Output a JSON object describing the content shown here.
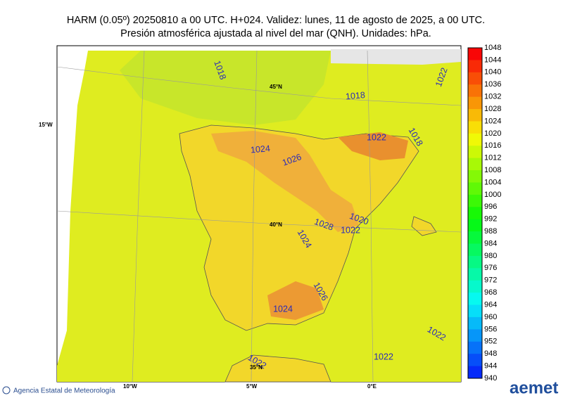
{
  "header": {
    "line1": "HARM (0.05º) 20250810 a 00 UTC. H+024. Validez: lunes, 11 de agosto de 2025, a 00 UTC.",
    "line2": "Presión atmosférica ajustada al nivel del mar (QNH). Unidades: hPa."
  },
  "colorbar": {
    "ticks": [
      1048,
      1044,
      1040,
      1036,
      1032,
      1028,
      1024,
      1020,
      1016,
      1012,
      1008,
      1004,
      1000,
      996,
      992,
      988,
      984,
      980,
      976,
      972,
      968,
      964,
      960,
      956,
      952,
      948,
      944,
      940
    ]
  },
  "map": {
    "contour_labels": [
      "1018",
      "1018",
      "1022",
      "1024",
      "1026",
      "1028",
      "1022",
      "1020",
      "1024",
      "1026",
      "1024",
      "1022",
      "1022",
      "1022",
      "1018",
      "1022"
    ],
    "grid_labels": [
      "45°N",
      "40°N",
      "35°N",
      "15°W",
      "10°W",
      "5°W",
      "0°E"
    ]
  },
  "footer": {
    "agency": "Agencia Estatal de Meteorología",
    "logo": "aemet"
  }
}
